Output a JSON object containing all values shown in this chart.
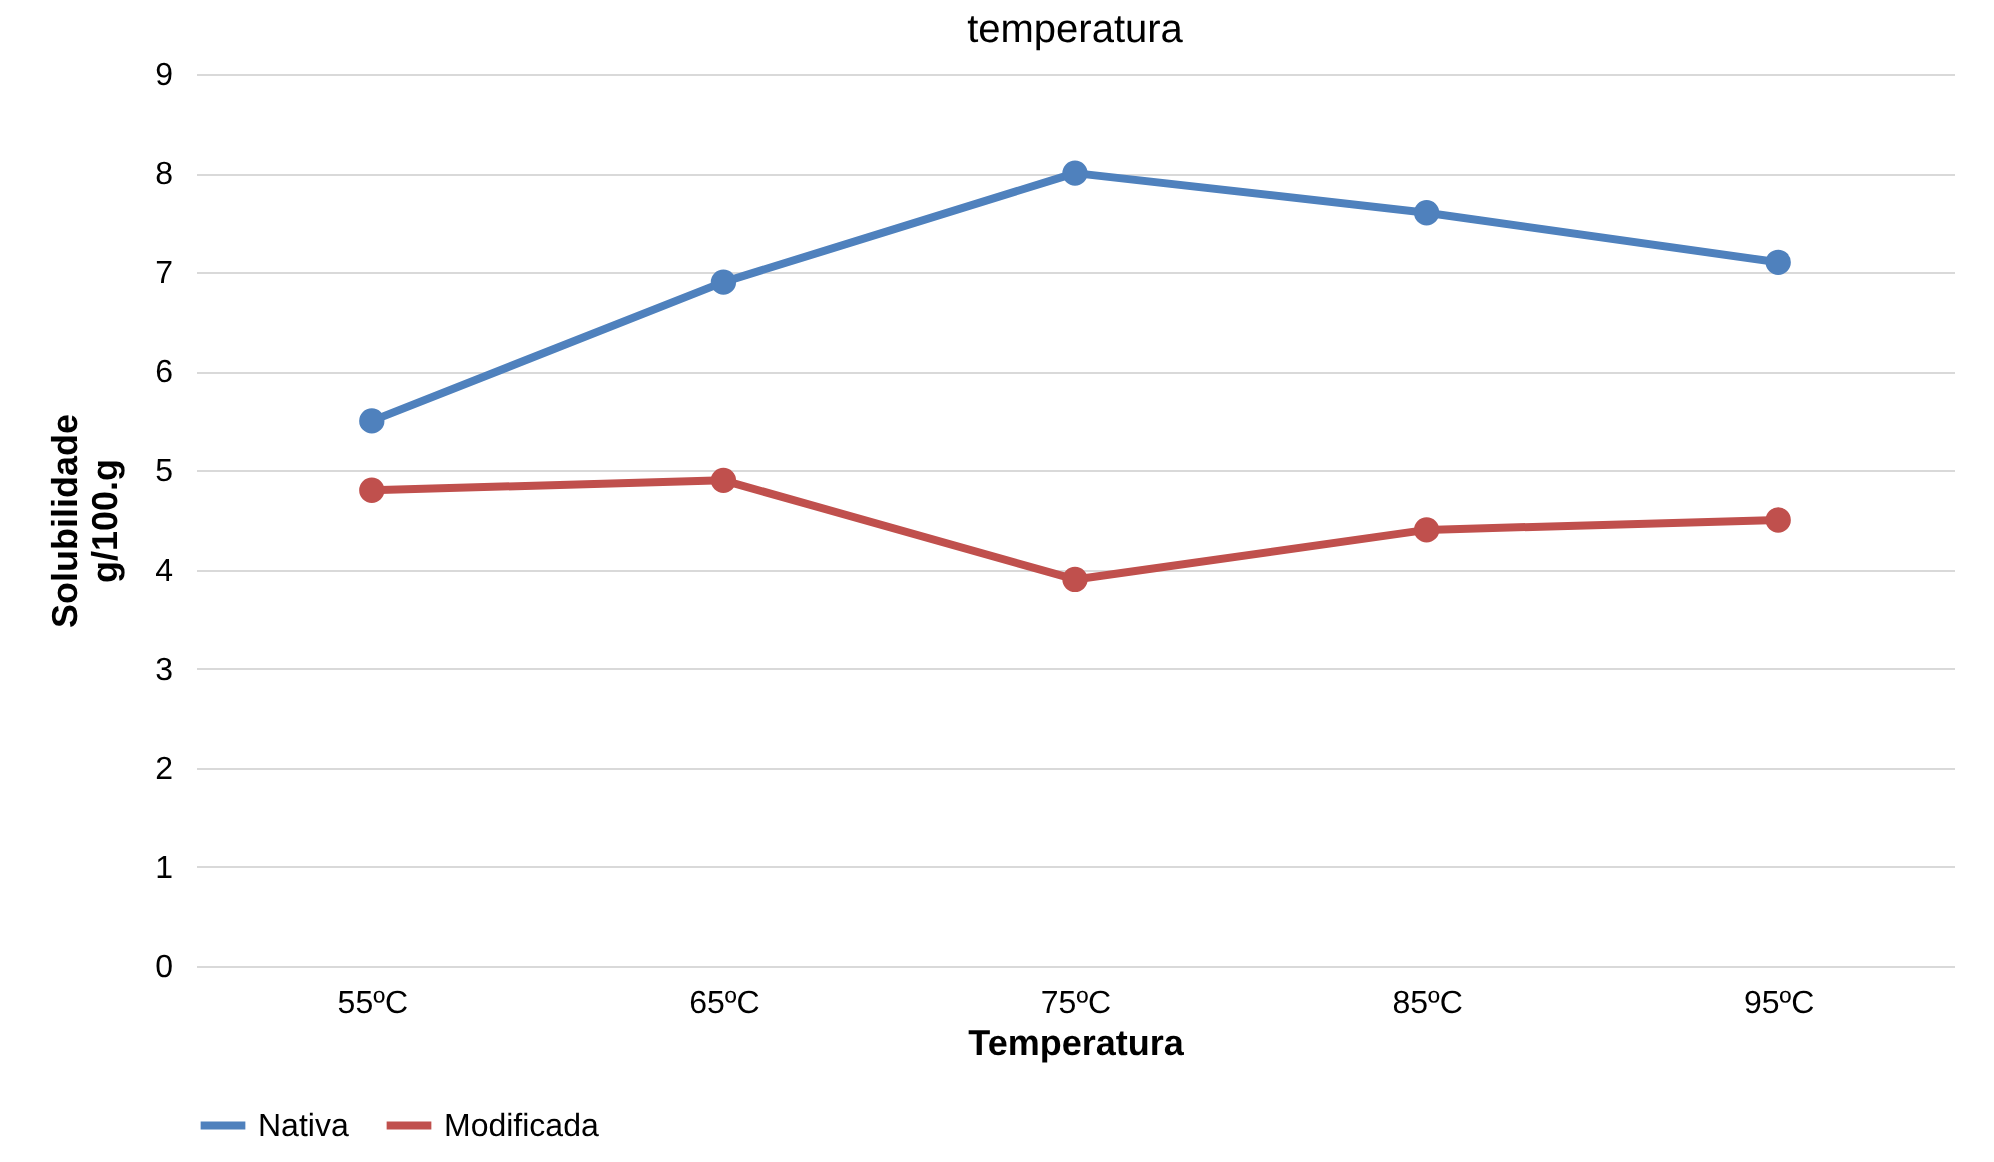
{
  "chart_data": {
    "type": "line",
    "title": "temperatura",
    "xlabel": "Temperatura",
    "ylabel": "Solubilidade\ng/100.g",
    "categories": [
      "55ºC",
      "65ºC",
      "75ºC",
      "85ºC",
      "95ºC"
    ],
    "series": [
      {
        "name": "Nativa",
        "color": "#4f81bd",
        "values": [
          5.5,
          6.9,
          8.0,
          7.6,
          7.1
        ]
      },
      {
        "name": "Modificada",
        "color": "#c0504d",
        "values": [
          4.8,
          4.9,
          3.9,
          4.4,
          4.5
        ]
      }
    ],
    "ylim": [
      0,
      9
    ],
    "yticks": [
      0,
      1,
      2,
      3,
      4,
      5,
      6,
      7,
      8,
      9
    ],
    "grid": "y",
    "legend": "bottom",
    "marker": "circle",
    "line_style": "solid"
  }
}
